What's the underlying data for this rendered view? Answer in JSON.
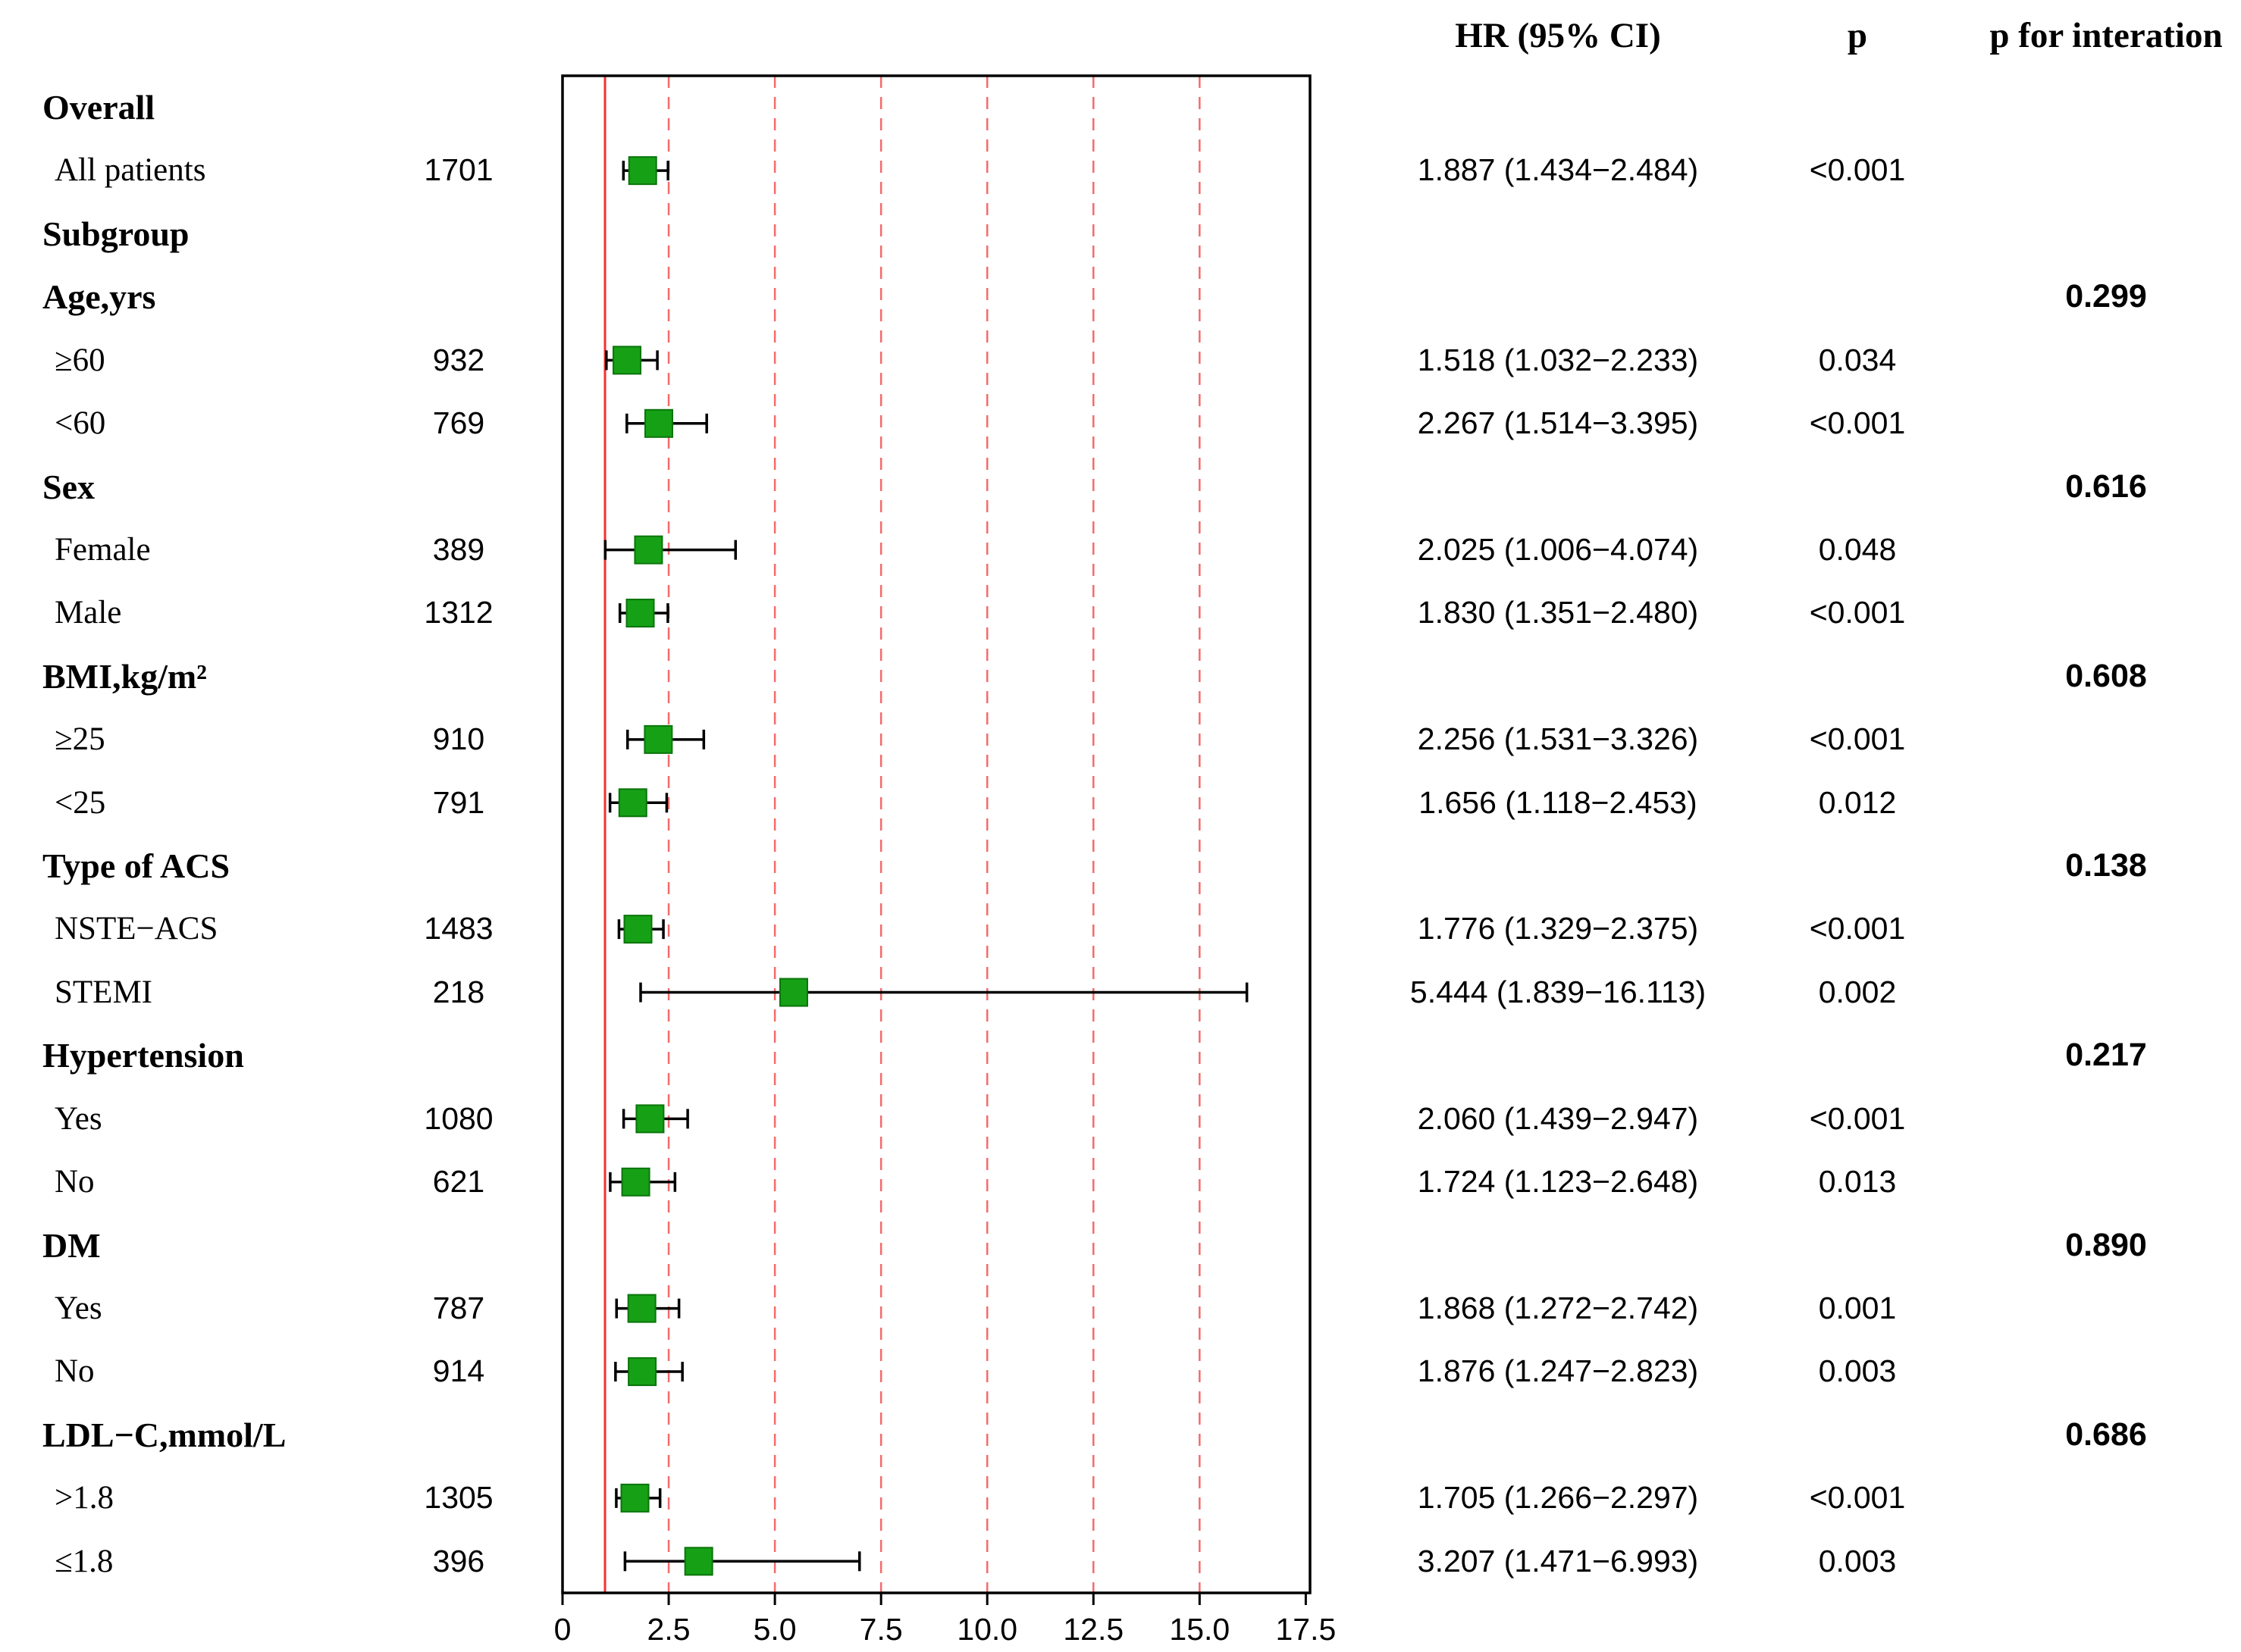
{
  "chart_data": {
    "type": "forest",
    "title": "",
    "columns": {
      "hr": "HR (95% CI)",
      "p": "p",
      "p_inter": "p for interation"
    },
    "x_axis": {
      "range": [
        0,
        17.6
      ],
      "ticks": [
        0,
        2.5,
        5.0,
        7.5,
        10.0,
        12.5,
        15.0,
        17.5
      ],
      "tick_labels": [
        "0",
        "2.5",
        "5.0",
        "7.5",
        "10.0",
        "12.5",
        "15.0",
        "17.5"
      ],
      "reference_line": 1,
      "dashed_gridlines": [
        2.5,
        5.0,
        7.5,
        10.0,
        12.5,
        15.0
      ]
    },
    "colors": {
      "marker": "#16a016",
      "marker_border": "#0b750b",
      "reference_line": "#f53030",
      "gridline": "#f56b6b",
      "whisker": "#000000",
      "axis": "#000000",
      "box_border": "#000000"
    },
    "rows": [
      {
        "label": "Overall",
        "bold": true
      },
      {
        "label": "All patients",
        "n": "1701",
        "est": 1.887,
        "lo": 1.434,
        "hi": 2.484,
        "hr_text": "1.887 (1.434−2.484)",
        "p": "<0.001"
      },
      {
        "label": "Subgroup",
        "bold": true
      },
      {
        "label": "Age,yrs",
        "bold": true,
        "p_inter": "0.299"
      },
      {
        "label": "≥60",
        "n": "932",
        "est": 1.518,
        "lo": 1.032,
        "hi": 2.233,
        "hr_text": "1.518 (1.032−2.233)",
        "p": "0.034"
      },
      {
        "label": "<60",
        "n": "769",
        "est": 2.267,
        "lo": 1.514,
        "hi": 3.395,
        "hr_text": "2.267 (1.514−3.395)",
        "p": "<0.001"
      },
      {
        "label": "Sex",
        "bold": true,
        "p_inter": "0.616"
      },
      {
        "label": "Female",
        "n": "389",
        "est": 2.025,
        "lo": 1.006,
        "hi": 4.074,
        "hr_text": "2.025 (1.006−4.074)",
        "p": "0.048"
      },
      {
        "label": "Male",
        "n": "1312",
        "est": 1.83,
        "lo": 1.351,
        "hi": 2.48,
        "hr_text": "1.830 (1.351−2.480)",
        "p": "<0.001"
      },
      {
        "label": "BMI,kg/m²",
        "bold": true,
        "p_inter": "0.608"
      },
      {
        "label": "≥25",
        "n": "910",
        "est": 2.256,
        "lo": 1.531,
        "hi": 3.326,
        "hr_text": "2.256 (1.531−3.326)",
        "p": "<0.001"
      },
      {
        "label": "<25",
        "n": "791",
        "est": 1.656,
        "lo": 1.118,
        "hi": 2.453,
        "hr_text": "1.656 (1.118−2.453)",
        "p": "0.012"
      },
      {
        "label": "Type of ACS",
        "bold": true,
        "p_inter": "0.138"
      },
      {
        "label": "NSTE−ACS",
        "n": "1483",
        "est": 1.776,
        "lo": 1.329,
        "hi": 2.375,
        "hr_text": "1.776 (1.329−2.375)",
        "p": "<0.001"
      },
      {
        "label": "STEMI",
        "n": "218",
        "est": 5.444,
        "lo": 1.839,
        "hi": 16.113,
        "hr_text": "5.444 (1.839−16.113)",
        "p": "0.002"
      },
      {
        "label": "Hypertension",
        "bold": true,
        "p_inter": "0.217"
      },
      {
        "label": "Yes",
        "n": "1080",
        "est": 2.06,
        "lo": 1.439,
        "hi": 2.947,
        "hr_text": "2.060 (1.439−2.947)",
        "p": "<0.001"
      },
      {
        "label": "No",
        "n": "621",
        "est": 1.724,
        "lo": 1.123,
        "hi": 2.648,
        "hr_text": "1.724 (1.123−2.648)",
        "p": "0.013"
      },
      {
        "label": "DM",
        "bold": true,
        "p_inter": "0.890"
      },
      {
        "label": "Yes",
        "n": "787",
        "est": 1.868,
        "lo": 1.272,
        "hi": 2.742,
        "hr_text": "1.868 (1.272−2.742)",
        "p": "0.001"
      },
      {
        "label": "No",
        "n": "914",
        "est": 1.876,
        "lo": 1.247,
        "hi": 2.823,
        "hr_text": "1.876 (1.247−2.823)",
        "p": "0.003"
      },
      {
        "label": "LDL−C,mmol/L",
        "bold": true,
        "p_inter": "0.686"
      },
      {
        "label": ">1.8",
        "n": "1305",
        "est": 1.705,
        "lo": 1.266,
        "hi": 2.297,
        "hr_text": "1.705 (1.266−2.297)",
        "p": "<0.001"
      },
      {
        "label": "≤1.8",
        "n": "396",
        "est": 3.207,
        "lo": 1.471,
        "hi": 6.993,
        "hr_text": "3.207 (1.471−6.993)",
        "p": "0.003"
      }
    ]
  }
}
